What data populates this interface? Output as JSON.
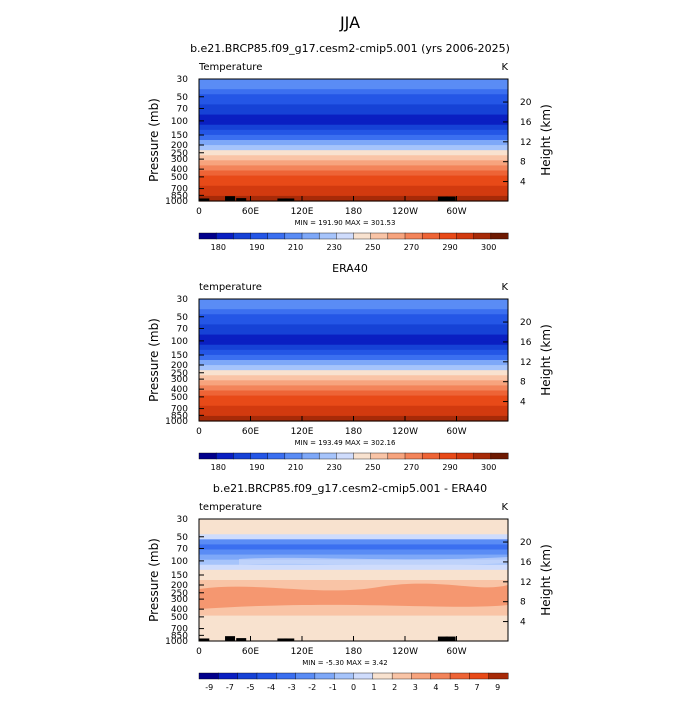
{
  "page_title": "JJA",
  "chart_data": [
    {
      "type": "heatmap",
      "title": "b.e21.BRCP85.f09_g17.cesm2-cmip5.001 (yrs 2006-2025)",
      "variable_label": "Temperature",
      "units": "K",
      "ylabel": "Pressure (mb)",
      "ylabel_right": "Height (km)",
      "pressure_ticks": [
        "30",
        "50",
        "70",
        "100",
        "150",
        "200",
        "250",
        "300",
        "400",
        "500",
        "700",
        "850",
        "1000"
      ],
      "height_ticks": [
        "20",
        "16",
        "12",
        "8",
        "4"
      ],
      "lon_ticks": [
        "0",
        "60E",
        "120E",
        "180",
        "120W",
        "60W"
      ],
      "min_max_text": "MIN = 191.90   MAX = 301.53",
      "legend_levels": [
        "180",
        "190",
        "210",
        "230",
        "250",
        "270",
        "290",
        "300"
      ],
      "legend_colors": [
        "#02008c",
        "#0a1fc2",
        "#1642d6",
        "#2456e6",
        "#3b6ff0",
        "#5a8cf5",
        "#7ea8f8",
        "#a6c4fb",
        "#cfdcfc",
        "#f8e2cf",
        "#f9c4a6",
        "#f7a47e",
        "#f3845a",
        "#ee6436",
        "#e84a18",
        "#d23a0f",
        "#a72a08",
        "#6e1a02"
      ],
      "profile": [
        5,
        5,
        4,
        3,
        3,
        2,
        2,
        1,
        1,
        2,
        3,
        4,
        6,
        7,
        9,
        10,
        11,
        12,
        13,
        14,
        14,
        15,
        15,
        16
      ],
      "topography": [
        {
          "lon": 5,
          "pressure": 930
        },
        {
          "lon": 35,
          "pressure": 870
        },
        {
          "lon": 48,
          "pressure": 920
        },
        {
          "lon": 96,
          "pressure": 930
        },
        {
          "lon": 104,
          "pressure": 930
        },
        {
          "lon": 283,
          "pressure": 880
        },
        {
          "lon": 292,
          "pressure": 880
        }
      ]
    },
    {
      "type": "heatmap",
      "title": "ERA40",
      "variable_label": "temperature",
      "units": "K",
      "ylabel": "Pressure (mb)",
      "ylabel_right": "Height (km)",
      "pressure_ticks": [
        "30",
        "50",
        "70",
        "100",
        "150",
        "200",
        "250",
        "300",
        "400",
        "500",
        "700",
        "850",
        "1000"
      ],
      "height_ticks": [
        "20",
        "16",
        "12",
        "8",
        "4"
      ],
      "lon_ticks": [
        "0",
        "60E",
        "120E",
        "180",
        "120W",
        "60W"
      ],
      "min_max_text": "MIN = 193.49   MAX = 302.16",
      "legend_levels": [
        "180",
        "190",
        "210",
        "230",
        "250",
        "270",
        "290",
        "300"
      ],
      "legend_colors": [
        "#02008c",
        "#0a1fc2",
        "#1642d6",
        "#2456e6",
        "#3b6ff0",
        "#5a8cf5",
        "#7ea8f8",
        "#a6c4fb",
        "#cfdcfc",
        "#f8e2cf",
        "#f9c4a6",
        "#f7a47e",
        "#f3845a",
        "#ee6436",
        "#e84a18",
        "#d23a0f",
        "#a72a08",
        "#6e1a02"
      ],
      "profile": [
        5,
        5,
        4,
        3,
        3,
        2,
        2,
        1,
        1,
        2,
        3,
        4,
        6,
        7,
        9,
        10,
        11,
        12,
        13,
        14,
        14,
        15,
        15,
        16
      ],
      "topography": []
    },
    {
      "type": "heatmap",
      "title": "b.e21.BRCP85.f09_g17.cesm2-cmip5.001 - ERA40",
      "variable_label": "temperature",
      "units": "K",
      "ylabel": "Pressure (mb)",
      "ylabel_right": "Height (km)",
      "pressure_ticks": [
        "30",
        "50",
        "70",
        "100",
        "150",
        "200",
        "250",
        "300",
        "400",
        "500",
        "700",
        "850",
        "1000"
      ],
      "height_ticks": [
        "20",
        "16",
        "12",
        "8",
        "4"
      ],
      "lon_ticks": [
        "0",
        "60E",
        "120E",
        "180",
        "120W",
        "60W"
      ],
      "min_max_text": "MIN =   -5.30   MAX =     3.42",
      "legend_levels": [
        "-9",
        "-7",
        "-5",
        "-4",
        "-3",
        "-2",
        "-1",
        "0",
        "1",
        "2",
        "3",
        "4",
        "5",
        "7",
        "9"
      ],
      "legend_colors": [
        "#02008c",
        "#0a1fc2",
        "#1642d6",
        "#2456e6",
        "#3b6ff0",
        "#5a8cf5",
        "#7ea8f8",
        "#a6c4fb",
        "#cfdcfc",
        "#f8e2cf",
        "#f9c4a6",
        "#f7a47e",
        "#f3845a",
        "#ee6436",
        "#e84a18",
        "#a72a08"
      ],
      "profile": [
        9,
        9,
        9,
        8,
        5,
        4,
        5,
        6,
        7,
        8,
        9,
        9,
        10,
        10,
        10,
        10,
        10,
        10,
        10,
        9,
        9,
        9,
        9,
        9
      ],
      "topography": [
        {
          "lon": 5,
          "pressure": 930
        },
        {
          "lon": 35,
          "pressure": 870
        },
        {
          "lon": 48,
          "pressure": 920
        },
        {
          "lon": 96,
          "pressure": 930
        },
        {
          "lon": 104,
          "pressure": 930
        },
        {
          "lon": 283,
          "pressure": 880
        },
        {
          "lon": 292,
          "pressure": 880
        }
      ]
    }
  ]
}
